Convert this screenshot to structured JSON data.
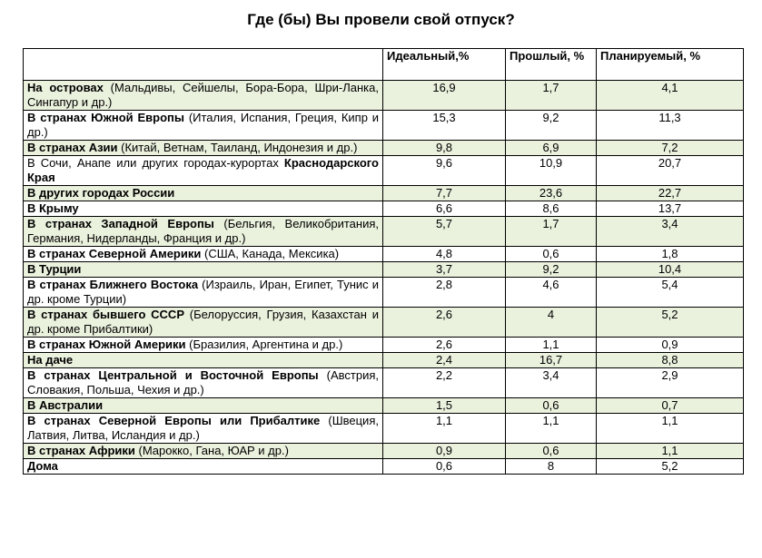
{
  "title": "Где (бы) Вы провели свой отпуск?",
  "columns": [
    "",
    "Идеальный,%",
    "Прошлый, %",
    "Планируемый, %"
  ],
  "shade_color": "#eaf1dd",
  "rows": [
    {
      "bold": "На островах",
      "rest": " (Мальдивы, Сейшелы, Бора-Бора, Шри-Ланка, Сингапур и др.)",
      "ideal": "16,9",
      "past": "1,7",
      "planned": "4,1",
      "shaded": true
    },
    {
      "bold": "В странах Южной Европы",
      "rest": " (Италия, Испания, Греция, Кипр и др.)",
      "ideal": "15,3",
      "past": "9,2",
      "planned": "11,3",
      "shaded": false
    },
    {
      "bold": "В странах Азии",
      "rest": " (Китай, Ветнам, Таиланд, Индонезия и др.)",
      "ideal": "9,8",
      "past": "6,9",
      "planned": "7,2",
      "shaded": true
    },
    {
      "bold": "",
      "rest": "В Сочи, Анапе или других городах-курортах ",
      "bold2": "Краснодарского Края",
      "ideal": "9,6",
      "past": "10,9",
      "planned": "20,7",
      "shaded": false
    },
    {
      "bold": "В других городах России",
      "rest": "",
      "ideal": "7,7",
      "past": "23,6",
      "planned": "22,7",
      "shaded": true
    },
    {
      "bold": "В Крыму",
      "rest": "",
      "ideal": "6,6",
      "past": "8,6",
      "planned": "13,7",
      "shaded": false
    },
    {
      "bold": "В странах Западной Европы",
      "rest": " (Бельгия, Великобритания, Германия, Нидерланды, Франция и др.)",
      "ideal": "5,7",
      "past": "1,7",
      "planned": "3,4",
      "shaded": true
    },
    {
      "bold": "В странах Северной Америки",
      "rest": " (США, Канада, Мексика)",
      "ideal": "4,8",
      "past": "0,6",
      "planned": "1,8",
      "shaded": false
    },
    {
      "bold": "В Турции",
      "rest": "",
      "ideal": "3,7",
      "past": "9,2",
      "planned": "10,4",
      "shaded": true
    },
    {
      "bold": "В странах Ближнего Востока",
      "rest": " (Израиль, Иран, Египет, Тунис и др. кроме Турции)",
      "ideal": "2,8",
      "past": "4,6",
      "planned": "5,4",
      "shaded": false
    },
    {
      "bold": "В странах бывшего СССР",
      "rest": " (Белоруссия, Грузия, Казахстан  и др. кроме Прибалтики)",
      "ideal": "2,6",
      "past": "4",
      "planned": "5,2",
      "shaded": true
    },
    {
      "bold": "В странах Южной Америки",
      "rest": " (Бразилия, Аргентина и др.)",
      "ideal": "2,6",
      "past": "1,1",
      "planned": "0,9",
      "shaded": false
    },
    {
      "bold": "На даче",
      "rest": "",
      "ideal": "2,4",
      "past": "16,7",
      "planned": "8,8",
      "shaded": true
    },
    {
      "bold": "В странах Центральной и Восточной Европы",
      "rest": " (Австрия, Словакия, Польша, Чехия и др.)",
      "ideal": "2,2",
      "past": "3,4",
      "planned": "2,9",
      "shaded": false
    },
    {
      "bold": "В Австралии",
      "rest": "",
      "ideal": "1,5",
      "past": "0,6",
      "planned": "0,7",
      "shaded": true
    },
    {
      "bold": "В странах Северной Европы или Прибалтике",
      "rest": " (Швеция, Латвия, Литва, Исландия и др.)",
      "ideal": "1,1",
      "past": "1,1",
      "planned": "1,1",
      "shaded": false
    },
    {
      "bold": "В странах Африки",
      "rest": " (Марокко, Гана, ЮАР и др.)",
      "ideal": "0,9",
      "past": "0,6",
      "planned": "1,1",
      "shaded": true
    },
    {
      "bold": "Дома",
      "rest": "",
      "ideal": "0,6",
      "past": "8",
      "planned": "5,2",
      "shaded": false
    }
  ]
}
